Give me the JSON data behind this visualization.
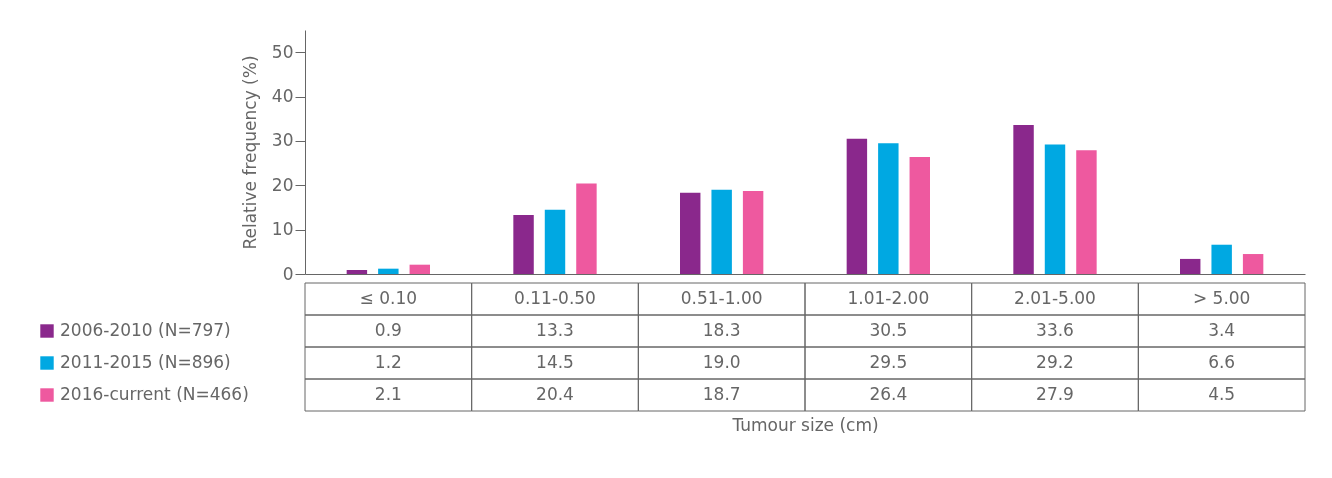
{
  "chart_data": {
    "type": "bar",
    "ylabel": "Relative frequency (%)",
    "annotations": [
      "Tumour size (cm)"
    ],
    "categories": [
      "≤ 0.10",
      "0.11-0.50",
      "0.51-1.00",
      "1.01-2.00",
      "2.01-5.00",
      "> 5.00"
    ],
    "series": [
      {
        "name": "2006-2010 (N=797)",
        "color": "#8a288c",
        "values": [
          0.9,
          13.3,
          18.3,
          30.5,
          33.6,
          3.4
        ],
        "value_labels": [
          "0.9",
          "13.3",
          "18.3",
          "30.5",
          "33.6",
          "3.4"
        ]
      },
      {
        "name": "2011-2015 (N=896)",
        "color": "#00a8e2",
        "values": [
          1.2,
          14.5,
          19.0,
          29.5,
          29.2,
          6.6
        ],
        "value_labels": [
          "1.2",
          "14.5",
          "19.0",
          "29.5",
          "29.2",
          "6.6"
        ]
      },
      {
        "name": "2016-current (N=466)",
        "color": "#ee599f",
        "values": [
          2.1,
          20.4,
          18.7,
          26.4,
          27.9,
          4.5
        ],
        "value_labels": [
          "2.1",
          "20.4",
          "18.7",
          "26.4",
          "27.9",
          "4.5"
        ]
      }
    ],
    "ylim": [
      0,
      55
    ],
    "yticks": [
      0,
      10,
      20,
      30,
      40,
      50
    ],
    "legend": "bottom left"
  }
}
